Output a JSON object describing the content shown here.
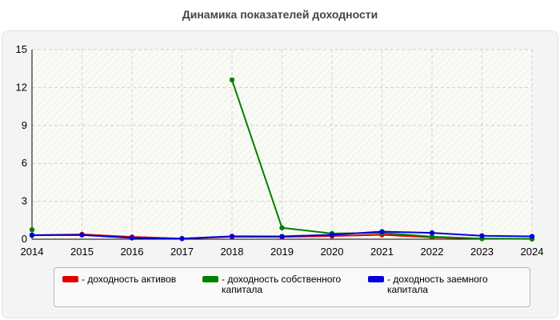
{
  "title": "Динамика показателей доходности",
  "chart_data": {
    "type": "line",
    "title": "Динамика показателей доходности",
    "xlabel": "",
    "ylabel": "",
    "x": [
      "2014",
      "2015",
      "2016",
      "2017",
      "2018",
      "2019",
      "2020",
      "2021",
      "2022",
      "2023",
      "2024"
    ],
    "ylim": [
      0,
      15
    ],
    "yticks": [
      "0",
      "3",
      "6",
      "9",
      "12",
      "15"
    ],
    "grid": true,
    "legend_position": "bottom",
    "series": [
      {
        "name": "- доходность активов",
        "color": "#e00000",
        "values": [
          0.32,
          0.38,
          0.18,
          0.05,
          0.2,
          0.18,
          0.25,
          0.35,
          0.15,
          0.05,
          0.02
        ]
      },
      {
        "name": "- доходность собственного капитала",
        "color": "#008000",
        "values": [
          0.75,
          null,
          null,
          null,
          12.6,
          0.9,
          0.45,
          0.5,
          0.2,
          0.05,
          0.03
        ]
      },
      {
        "name": "- доходность заемного капитала",
        "color": "#0000e0",
        "values": [
          0.32,
          0.33,
          0.1,
          0.05,
          0.23,
          0.22,
          0.35,
          0.6,
          0.5,
          0.27,
          0.22
        ]
      }
    ]
  }
}
